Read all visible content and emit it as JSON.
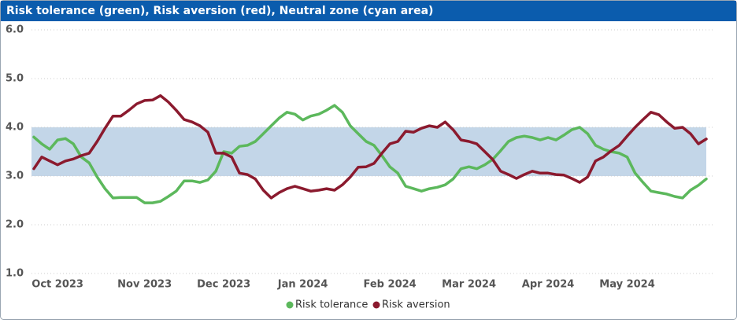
{
  "chart_data": {
    "type": "line",
    "title": "Risk tolerance (green), Risk aversion (red), Neutral zone (cyan area)",
    "categories": [
      null,
      null,
      null,
      "Oct 2023",
      null,
      null,
      null,
      null,
      null,
      null,
      null,
      null,
      null,
      null,
      "Nov 2023",
      null,
      null,
      null,
      null,
      null,
      null,
      null,
      null,
      null,
      "Dec 2023",
      null,
      null,
      null,
      null,
      null,
      null,
      null,
      null,
      null,
      "Jan 2024",
      null,
      null,
      null,
      null,
      null,
      null,
      null,
      null,
      null,
      null,
      "Feb 2024",
      null,
      null,
      null,
      null,
      null,
      null,
      null,
      null,
      null,
      "Mar 2024",
      null,
      null,
      null,
      null,
      null,
      null,
      null,
      null,
      null,
      "Apr 2024",
      null,
      null,
      null,
      null,
      null,
      null,
      null,
      null,
      null,
      "May 2024",
      null,
      null,
      null,
      null,
      null,
      null,
      null,
      null,
      null,
      null
    ],
    "series": [
      {
        "name": "Risk tolerance",
        "color": "#5cb85c",
        "values": [
          3.8,
          3.66,
          3.55,
          3.74,
          3.77,
          3.66,
          3.39,
          3.27,
          2.98,
          2.74,
          2.55,
          2.56,
          2.56,
          2.56,
          2.45,
          2.45,
          2.48,
          2.58,
          2.69,
          2.9,
          2.9,
          2.87,
          2.92,
          3.1,
          3.5,
          3.47,
          3.61,
          3.63,
          3.71,
          3.87,
          4.03,
          4.19,
          4.31,
          4.27,
          4.15,
          4.23,
          4.27,
          4.35,
          4.45,
          4.31,
          4.03,
          3.87,
          3.71,
          3.63,
          3.42,
          3.19,
          3.06,
          2.79,
          2.74,
          2.69,
          2.74,
          2.77,
          2.82,
          2.94,
          3.15,
          3.19,
          3.15,
          3.23,
          3.34,
          3.52,
          3.71,
          3.79,
          3.82,
          3.79,
          3.74,
          3.79,
          3.74,
          3.84,
          3.95,
          4.0,
          3.87,
          3.63,
          3.55,
          3.5,
          3.47,
          3.39,
          3.06,
          2.87,
          2.69,
          2.66,
          2.63,
          2.58,
          2.55,
          2.71,
          2.81,
          2.94
        ]
      },
      {
        "name": "Risk aversion",
        "color": "#8b1a2e",
        "values": [
          3.15,
          3.39,
          3.31,
          3.23,
          3.31,
          3.35,
          3.42,
          3.47,
          3.71,
          3.98,
          4.23,
          4.23,
          4.35,
          4.48,
          4.55,
          4.56,
          4.65,
          4.52,
          4.35,
          4.16,
          4.11,
          4.03,
          3.9,
          3.47,
          3.47,
          3.39,
          3.06,
          3.03,
          2.94,
          2.71,
          2.55,
          2.66,
          2.74,
          2.79,
          2.74,
          2.69,
          2.71,
          2.74,
          2.71,
          2.82,
          2.98,
          3.18,
          3.19,
          3.26,
          3.47,
          3.66,
          3.71,
          3.92,
          3.9,
          3.98,
          4.03,
          4.0,
          4.11,
          3.95,
          3.74,
          3.71,
          3.66,
          3.5,
          3.34,
          3.1,
          3.03,
          2.95,
          3.03,
          3.1,
          3.06,
          3.06,
          3.03,
          3.02,
          2.95,
          2.87,
          2.98,
          3.31,
          3.39,
          3.52,
          3.63,
          3.82,
          4.0,
          4.16,
          4.31,
          4.26,
          4.11,
          3.98,
          4.0,
          3.87,
          3.66,
          3.76
        ]
      }
    ],
    "neutral_zone": [
      3,
      4
    ],
    "neutral_zone_color": "#c3d6e8",
    "ylim": [
      1,
      6
    ],
    "yticks": [
      {
        "value": 1,
        "label": "1.0"
      },
      {
        "value": 2,
        "label": "2.0"
      },
      {
        "value": 3,
        "label": "3.0"
      },
      {
        "value": 4,
        "label": "4.0"
      },
      {
        "value": 5,
        "label": "5.0"
      },
      {
        "value": 6,
        "label": "6.0"
      }
    ],
    "grid": true,
    "legend": "bottom"
  }
}
